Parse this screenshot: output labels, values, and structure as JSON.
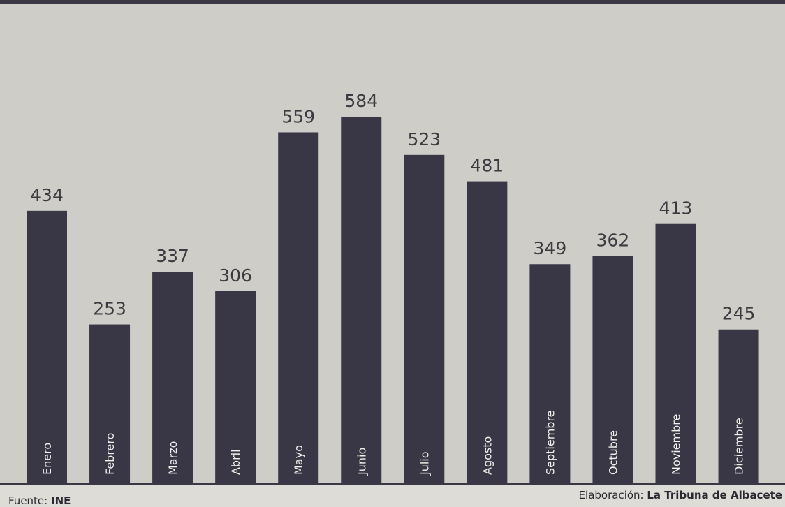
{
  "chart_data": {
    "type": "bar",
    "categories": [
      "Enero",
      "Febrero",
      "Marzo",
      "Abril",
      "Mayo",
      "Junio",
      "Julio",
      "Agosto",
      "Septiembre",
      "Octubre",
      "Noviembre",
      "Diciembre"
    ],
    "values": [
      434,
      253,
      337,
      306,
      559,
      584,
      523,
      481,
      349,
      362,
      413,
      245
    ],
    "bar_color": "#393746",
    "label_color": "#3a3a40",
    "category_label_color": "#f2f0ea",
    "background_color": "#cfcdc8"
  },
  "footer": {
    "source_prefix": "Fuente:",
    "source_value": "INE",
    "credit_prefix": "Elaboración:",
    "credit_value": "La Tribuna de Albacete"
  }
}
